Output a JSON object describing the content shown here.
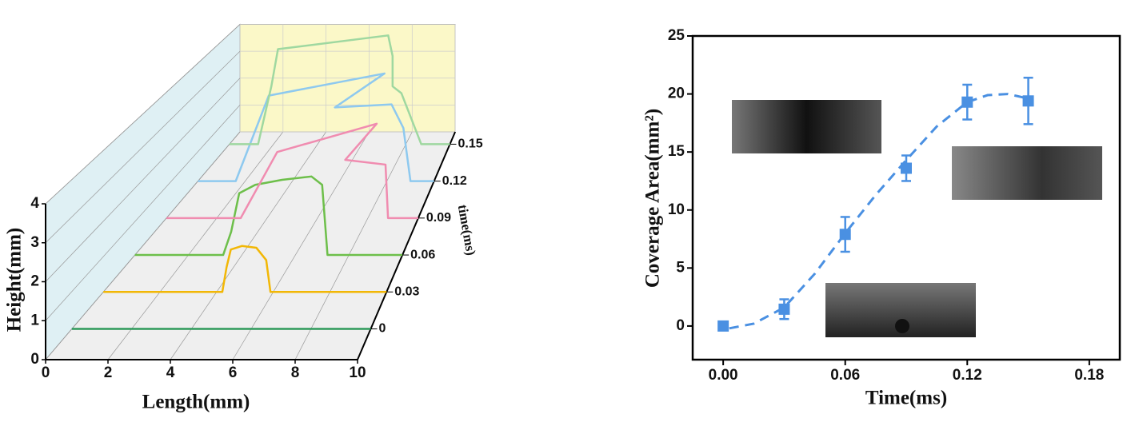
{
  "chart_data": [
    {
      "type": "waterfall",
      "xlabel": "Length(mm)",
      "ylabel": "Height(mm)",
      "zlabel": "time(ms)",
      "xlim": [
        0,
        10
      ],
      "xticks": [
        0,
        2,
        4,
        6,
        8,
        10
      ],
      "ylim": [
        0,
        4
      ],
      "yticks": [
        0,
        1,
        2,
        3,
        4
      ],
      "zlim": [
        -0.025,
        0.16
      ],
      "zticks": [
        0,
        0.03,
        0.06,
        0.09,
        0.12,
        0.15
      ],
      "series": [
        {
          "color": "#2e9a5a",
          "x": [
            0,
            10
          ],
          "y": [
            0,
            0
          ]
        },
        {
          "color": "#f2b705",
          "x": [
            0,
            4.2,
            4.35,
            4.5,
            4.9,
            5.4,
            5.75,
            5.9,
            10
          ],
          "y": [
            0,
            0,
            0.7,
            1.2,
            1.3,
            1.25,
            0.9,
            0,
            0
          ]
        },
        {
          "color": "#6dbf4a",
          "x": [
            0,
            3.3,
            3.6,
            3.9,
            4.5,
            5.5,
            6.6,
            7.0,
            7.2,
            10
          ],
          "y": [
            0,
            0,
            0.7,
            1.85,
            2.1,
            2.25,
            2.35,
            2.1,
            0,
            0
          ]
        },
        {
          "color": "#f08cb0",
          "x": [
            0,
            2.95,
            4.4,
            8.35,
            7.1,
            8.7,
            8.8,
            10
          ],
          "y": [
            0,
            0,
            2.1,
            3.0,
            1.85,
            1.7,
            0,
            0
          ]
        },
        {
          "color": "#8ec9ef",
          "x": [
            0,
            1.6,
            3.0,
            7.9,
            5.8,
            8.2,
            8.7,
            9.0,
            10
          ],
          "y": [
            0,
            0,
            2.9,
            3.65,
            2.5,
            2.6,
            1.8,
            0,
            0
          ]
        },
        {
          "color": "#9fd8a0",
          "x": [
            0,
            1.3,
            1.9,
            2.2,
            7.2,
            7.4,
            7.4,
            7.8,
            8.7,
            10
          ],
          "y": [
            0,
            0,
            2.1,
            3.45,
            3.95,
            3.2,
            2.1,
            1.85,
            0,
            0
          ]
        }
      ]
    },
    {
      "type": "scatter",
      "xlabel": "Time(ms)",
      "ylabel": "Coverage Area(mm²)",
      "xlim": [
        -0.015,
        0.195
      ],
      "xticks": [
        {
          "value": 0,
          "label": "0.00"
        },
        0.06,
        0.12,
        0.18
      ],
      "ylim": [
        -2.9,
        25
      ],
      "yticks": [
        0,
        5,
        10,
        15,
        20,
        25
      ],
      "series": [
        {
          "color": "#4a90e2",
          "x": [
            0,
            0.03,
            0.06,
            0.09,
            0.12,
            0.15
          ],
          "y": [
            0,
            1.45,
            7.9,
            13.6,
            19.3,
            19.4
          ],
          "errors": [
            0,
            0.85,
            1.5,
            1.1,
            1.5,
            2.0
          ]
        },
        {
          "color": "#4a90e2",
          "style": "dashed",
          "x": [
            0.003,
            0.015,
            0.03,
            0.045,
            0.06,
            0.075,
            0.09,
            0.105,
            0.12,
            0.13,
            0.14,
            0.15
          ],
          "y": [
            -0.2,
            0.2,
            1.6,
            4.5,
            8.0,
            11.3,
            14.3,
            17.2,
            19.3,
            19.9,
            20.0,
            19.6
          ]
        }
      ]
    }
  ]
}
